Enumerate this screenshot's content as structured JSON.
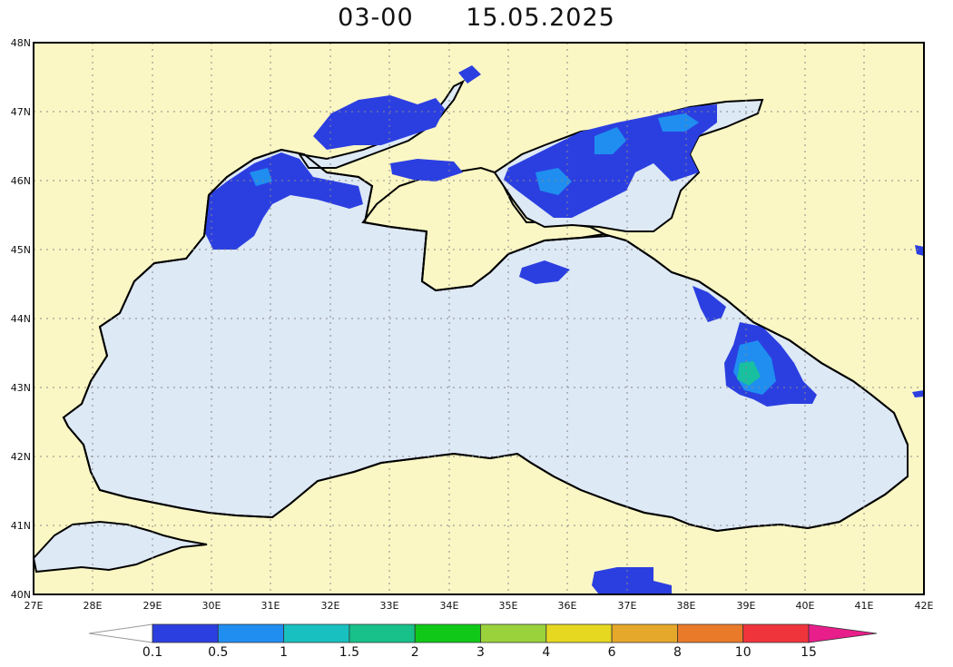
{
  "title": {
    "time": "03-00",
    "date": "15.05.2025"
  },
  "colors": {
    "land": "#fbf7c4",
    "sea": "#dde9f5",
    "coast": "#000000",
    "grid": "#888888"
  },
  "lat_labels": [
    "48N",
    "47N",
    "46N",
    "45N",
    "44N",
    "43N",
    "42N",
    "41N",
    "40N"
  ],
  "lon_labels": [
    "27E",
    "28E",
    "29E",
    "30E",
    "31E",
    "32E",
    "33E",
    "34E",
    "35E",
    "36E",
    "37E",
    "38E",
    "39E",
    "40E",
    "41E",
    "42E"
  ],
  "colorbar": {
    "labels": [
      "0.1",
      "0.5",
      "1",
      "1.5",
      "2",
      "3",
      "4",
      "6",
      "8",
      "10",
      "15"
    ],
    "colors": [
      "#2b3fe0",
      "#1f8ef0",
      "#18c0c0",
      "#18c08a",
      "#10c818",
      "#9ad23c",
      "#e6d820",
      "#e6a82a",
      "#e87a2a",
      "#f0343c",
      "#e81e8a"
    ]
  }
}
